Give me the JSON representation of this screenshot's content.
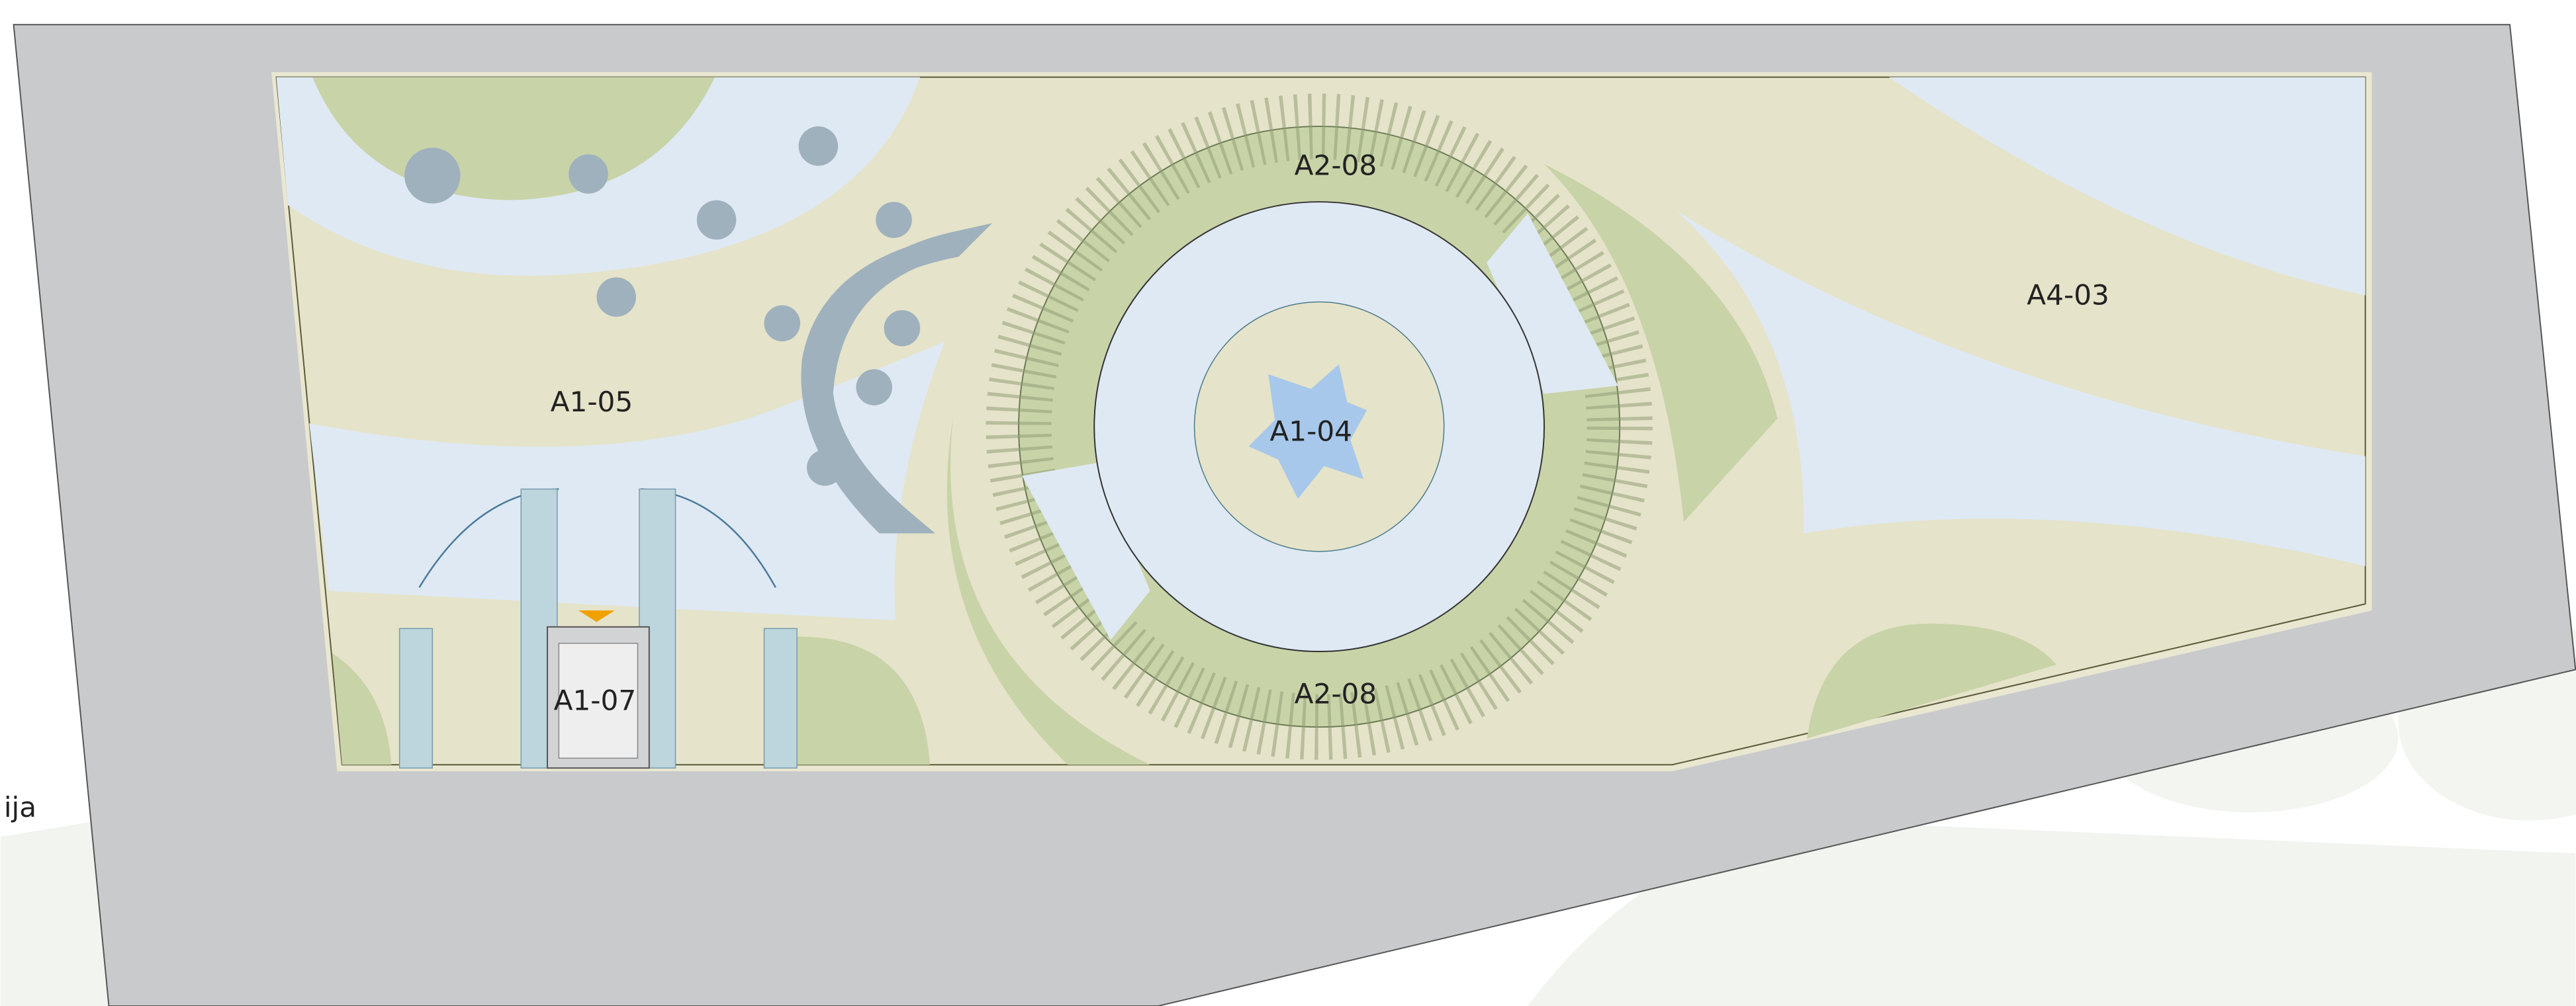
{
  "labels": {
    "edge": "ija",
    "areas": [
      "A2-08",
      "A2-08",
      "A1-04",
      "A4-03",
      "A1-05",
      "A1-07"
    ]
  }
}
